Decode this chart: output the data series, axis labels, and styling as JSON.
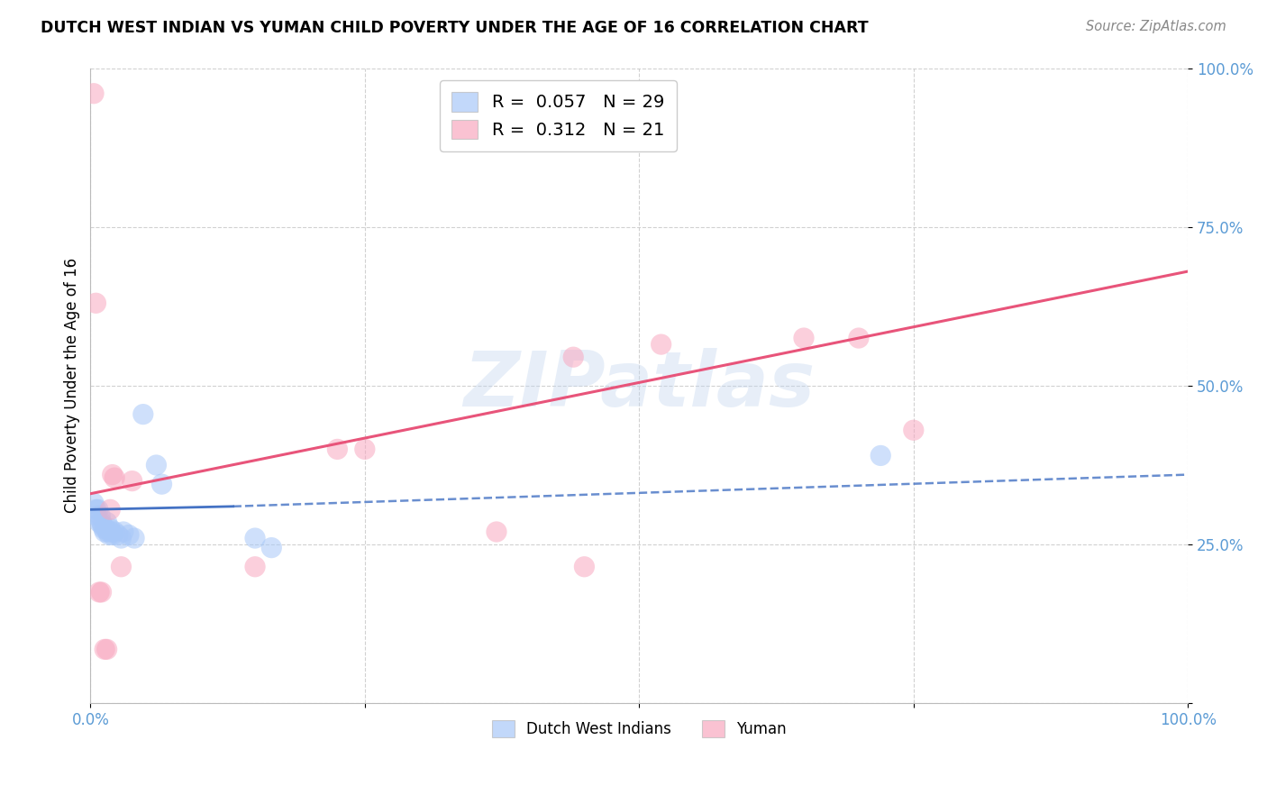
{
  "title": "DUTCH WEST INDIAN VS YUMAN CHILD POVERTY UNDER THE AGE OF 16 CORRELATION CHART",
  "source": "Source: ZipAtlas.com",
  "ylabel": "Child Poverty Under the Age of 16",
  "blue_color": "#a8c8f8",
  "pink_color": "#f8a8c0",
  "blue_line_color": "#4472c4",
  "pink_line_color": "#e8547a",
  "legend_blue_R": "0.057",
  "legend_blue_N": "29",
  "legend_pink_R": "0.312",
  "legend_pink_N": "21",
  "watermark": "ZIPatlas",
  "blue_points": [
    [
      0.003,
      0.315
    ],
    [
      0.005,
      0.305
    ],
    [
      0.006,
      0.295
    ],
    [
      0.007,
      0.305
    ],
    [
      0.008,
      0.285
    ],
    [
      0.009,
      0.295
    ],
    [
      0.01,
      0.285
    ],
    [
      0.011,
      0.28
    ],
    [
      0.012,
      0.275
    ],
    [
      0.013,
      0.27
    ],
    [
      0.014,
      0.275
    ],
    [
      0.015,
      0.285
    ],
    [
      0.016,
      0.27
    ],
    [
      0.017,
      0.265
    ],
    [
      0.018,
      0.275
    ],
    [
      0.019,
      0.27
    ],
    [
      0.02,
      0.265
    ],
    [
      0.022,
      0.27
    ],
    [
      0.025,
      0.265
    ],
    [
      0.028,
      0.26
    ],
    [
      0.03,
      0.27
    ],
    [
      0.035,
      0.265
    ],
    [
      0.04,
      0.26
    ],
    [
      0.048,
      0.455
    ],
    [
      0.06,
      0.375
    ],
    [
      0.065,
      0.345
    ],
    [
      0.15,
      0.26
    ],
    [
      0.165,
      0.245
    ],
    [
      0.72,
      0.39
    ]
  ],
  "pink_points": [
    [
      0.003,
      0.96
    ],
    [
      0.005,
      0.63
    ],
    [
      0.008,
      0.175
    ],
    [
      0.01,
      0.175
    ],
    [
      0.013,
      0.085
    ],
    [
      0.015,
      0.085
    ],
    [
      0.018,
      0.305
    ],
    [
      0.02,
      0.36
    ],
    [
      0.022,
      0.355
    ],
    [
      0.028,
      0.215
    ],
    [
      0.038,
      0.35
    ],
    [
      0.15,
      0.215
    ],
    [
      0.225,
      0.4
    ],
    [
      0.25,
      0.4
    ],
    [
      0.37,
      0.27
    ],
    [
      0.44,
      0.545
    ],
    [
      0.45,
      0.215
    ],
    [
      0.52,
      0.565
    ],
    [
      0.65,
      0.575
    ],
    [
      0.7,
      0.575
    ],
    [
      0.75,
      0.43
    ]
  ],
  "blue_line_solid": [
    [
      0.0,
      0.305
    ],
    [
      0.13,
      0.31
    ]
  ],
  "blue_line_dashed": [
    [
      0.13,
      0.31
    ],
    [
      1.0,
      0.36
    ]
  ],
  "pink_line": [
    [
      0.0,
      0.33
    ],
    [
      1.0,
      0.68
    ]
  ]
}
